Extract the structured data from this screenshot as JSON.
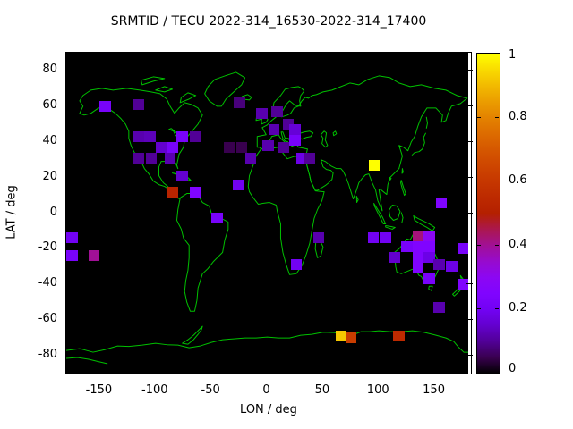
{
  "title": "SRMTID / TECU 2022-314_16530-2022-314_17400",
  "colors": {
    "page_background": "#ffffff",
    "map_background": "#000000",
    "coastline_green": "#00c000",
    "axis_text": "#000000",
    "border": "#000000",
    "palette_name": "gnuplot-default-black-violet-red-yellow"
  },
  "chart_data": {
    "type": "heatmap",
    "title": "SRMTID / TECU 2022-314_16530-2022-314_17400",
    "xlabel": "LON / deg",
    "ylabel": "LAT / deg",
    "xlim": [
      -180,
      180
    ],
    "ylim": [
      -90,
      90
    ],
    "x_ticks": [
      -150,
      -100,
      -50,
      0,
      50,
      100,
      150
    ],
    "y_ticks": [
      80,
      60,
      40,
      20,
      0,
      -20,
      -40,
      -60,
      -80
    ],
    "grid": "off",
    "basemap": "world-coastlines-green-on-black",
    "colorbar": {
      "position": "right",
      "range": [
        0,
        1
      ],
      "tick_values": [
        1,
        0.8,
        0.6,
        0.4,
        0.2,
        0
      ],
      "tick_labels": [
        "1",
        "0.8",
        "0.6",
        "0.4",
        "0.2",
        "0"
      ]
    },
    "cell_size_deg": {
      "lon": 10,
      "lat": 6
    },
    "cells_format": [
      "lon_center_deg",
      "lat_center_deg",
      "tecu_value_0_to_1"
    ],
    "cells": [
      [
        -145,
        60,
        0.22
      ],
      [
        -115,
        61,
        0.1
      ],
      [
        -25,
        62,
        0.08
      ],
      [
        -5,
        56,
        0.12
      ],
      [
        9,
        57,
        0.1
      ],
      [
        -115,
        43,
        0.12
      ],
      [
        -105,
        43,
        0.13
      ],
      [
        -76,
        43,
        0.22
      ],
      [
        -64,
        43,
        0.1
      ],
      [
        -95,
        37,
        0.15
      ],
      [
        -85,
        37,
        0.22
      ],
      [
        -34,
        37,
        0.05
      ],
      [
        -23,
        37,
        0.05
      ],
      [
        19,
        50,
        0.1
      ],
      [
        6,
        47,
        0.12
      ],
      [
        25,
        47,
        0.16
      ],
      [
        25,
        41,
        0.22
      ],
      [
        1,
        38,
        0.12
      ],
      [
        15,
        37,
        0.1
      ],
      [
        31,
        31,
        0.18
      ],
      [
        38,
        31,
        0.1
      ],
      [
        -15,
        31,
        0.12
      ],
      [
        -115,
        31,
        0.1
      ],
      [
        -104,
        31,
        0.1
      ],
      [
        -87,
        31,
        0.12
      ],
      [
        96,
        27,
        1.0
      ],
      [
        -76,
        21,
        0.15
      ],
      [
        -26,
        16,
        0.2
      ],
      [
        -85,
        12,
        0.52
      ],
      [
        -64,
        12,
        0.25
      ],
      [
        156,
        6,
        0.25
      ],
      [
        -45,
        -3,
        0.22
      ],
      [
        -175,
        -14,
        0.2
      ],
      [
        46,
        -14,
        0.12
      ],
      [
        95,
        -14,
        0.2
      ],
      [
        106,
        -14,
        0.2
      ],
      [
        135,
        -13,
        0.42
      ],
      [
        145,
        -13,
        0.3
      ],
      [
        -175,
        -24,
        0.22
      ],
      [
        -155,
        -24,
        0.4
      ],
      [
        125,
        -19,
        0.22
      ],
      [
        135,
        -19,
        0.25
      ],
      [
        145,
        -19,
        0.25
      ],
      [
        176,
        -20,
        0.22
      ],
      [
        114,
        -25,
        0.15
      ],
      [
        135,
        -25,
        0.25
      ],
      [
        145,
        -25,
        0.18
      ],
      [
        154,
        -29,
        0.12
      ],
      [
        165,
        -30,
        0.18
      ],
      [
        26,
        -29,
        0.2
      ],
      [
        135,
        -31,
        0.25
      ],
      [
        145,
        -37,
        0.22
      ],
      [
        175,
        -40,
        0.25
      ],
      [
        154,
        -53,
        0.12
      ],
      [
        66,
        -69,
        0.92
      ],
      [
        75,
        -70,
        0.62
      ],
      [
        118,
        -69,
        0.55
      ]
    ]
  }
}
